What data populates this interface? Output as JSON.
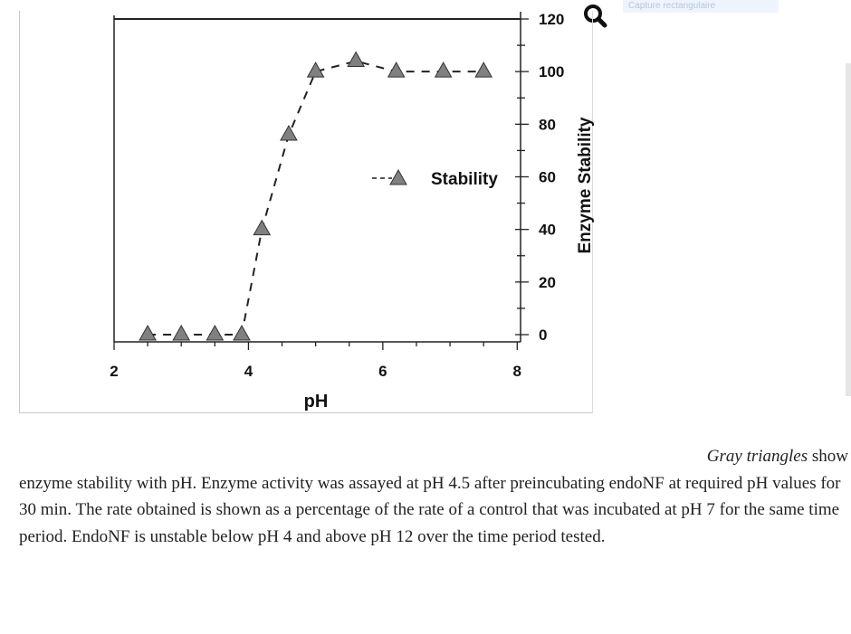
{
  "header": {
    "capture_hint": "Capture rectangulaire",
    "zoom_icon": "magnifier-icon"
  },
  "chart_data": {
    "type": "line",
    "title": "",
    "xlabel": "pH",
    "ylabel": "Enzyme Stability",
    "xlim": [
      2,
      8.05
    ],
    "ylim": [
      0,
      120
    ],
    "x_ticks": [
      "2",
      "4",
      "6",
      "8"
    ],
    "y_ticks": [
      "0",
      "20",
      "40",
      "60",
      "80",
      "100",
      "120"
    ],
    "y_axis_side": "right",
    "grid": false,
    "legend_position": "center-right",
    "series": [
      {
        "name": "Stability",
        "color": "#808080",
        "line_style": "dashed",
        "marker": "triangle",
        "x": [
          2.5,
          3.0,
          3.5,
          3.9,
          4.2,
          4.6,
          5.0,
          5.6,
          6.2,
          6.9,
          7.5
        ],
        "y": [
          0,
          0,
          0,
          0,
          40,
          76,
          100,
          104,
          100,
          100,
          100
        ]
      }
    ]
  },
  "caption": {
    "line1_italic": "Gray triangles",
    "line1_rest": " show",
    "body": "enzyme stability with pH. Enzyme activity was assayed at pH 4.5 after preincubating endoNF at required pH values for 30 min. The rate obtained is shown as a percentage of the rate of a control that was incubated at pH 7 for the same time period. EndoNF is unstable below pH 4 and above pH 12 over the time period tested."
  }
}
